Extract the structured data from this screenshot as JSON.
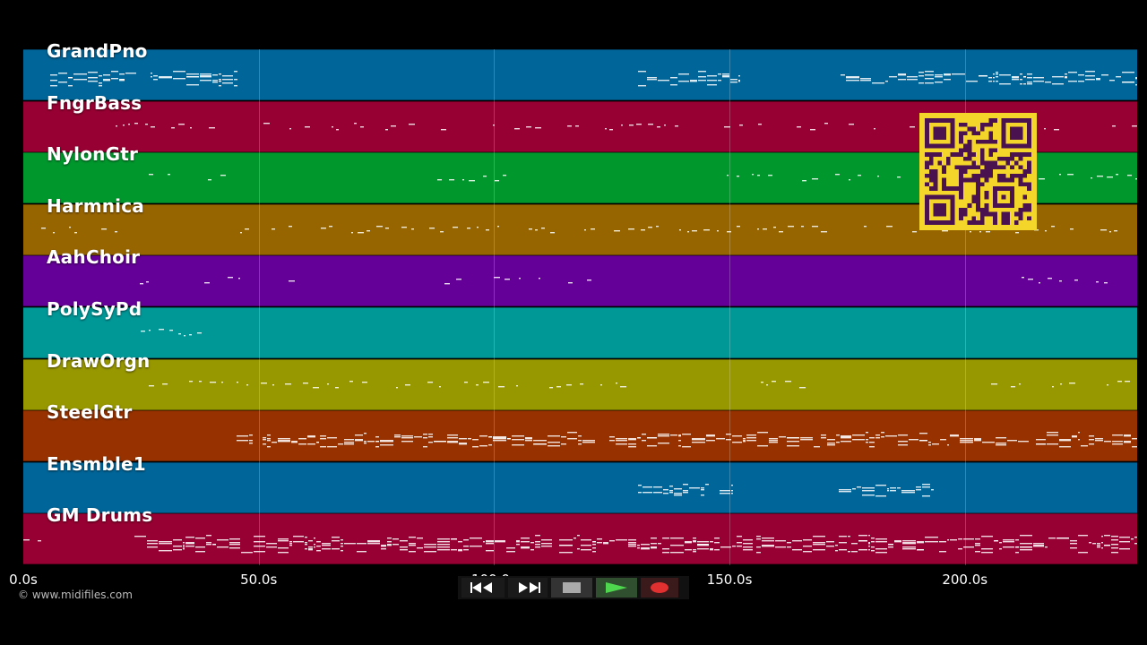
{
  "tracks": [
    {
      "name": "GrandPno",
      "color": "#006598"
    },
    {
      "name": "FngrBass",
      "color": "#970032"
    },
    {
      "name": "NylonGtr",
      "color": "#00972d"
    },
    {
      "name": "Harmnica",
      "color": "#976500"
    },
    {
      "name": "AahChoir",
      "color": "#640097"
    },
    {
      "name": "PolySyPd",
      "color": "#009797"
    },
    {
      "name": "DrawOrgn",
      "color": "#979700"
    },
    {
      "name": "SteelGtr",
      "color": "#973200"
    },
    {
      "name": "Ensmble1",
      "color": "#006598"
    },
    {
      "name": "GM Drums",
      "color": "#970032"
    }
  ],
  "timeline": {
    "ticks": [
      "0.0s",
      "50.0s",
      "100.0s",
      "150.0s",
      "200.0s"
    ],
    "tick_seconds": [
      0,
      50,
      100,
      150,
      200
    ],
    "end_seconds": 236.6
  },
  "credit": "© www.midifiles.com",
  "transport": {
    "buttons": [
      {
        "name": "rewind-button",
        "icon": "rewind-icon"
      },
      {
        "name": "fast-forward-button",
        "icon": "fast-forward-icon"
      },
      {
        "name": "stop-button",
        "icon": "stop-icon"
      },
      {
        "name": "play-button",
        "icon": "play-icon",
        "active": true
      },
      {
        "name": "record-button",
        "icon": "record-icon"
      }
    ]
  },
  "qr_code": {
    "icon": "qr-code-icon",
    "color": "#f4d62a",
    "module_color": "#4a1350"
  }
}
